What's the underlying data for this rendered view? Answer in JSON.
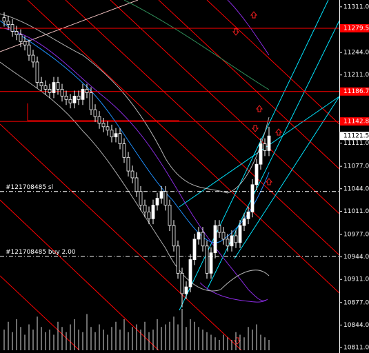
{
  "chart_data": {
    "type": "candlestick",
    "open": [
      11295,
      11290,
      11285,
      11275,
      11270,
      11260,
      11255,
      11240,
      11230,
      11200,
      11195,
      11190,
      11185,
      11200,
      11190,
      11180,
      11175,
      11170,
      11180,
      11175,
      11190,
      11185,
      11160,
      11150,
      11140,
      11135,
      11130,
      11120,
      11125,
      11110,
      11090,
      11070,
      11060,
      11040,
      11020,
      11010,
      11000,
      11020,
      11030,
      11040,
      11020,
      10990,
      10960,
      10920,
      10890,
      10900,
      10940,
      10970,
      10980,
      10960,
      10920,
      10950,
      10990,
      10980,
      10970,
      10960,
      10975,
      10965,
      10990,
      11000,
      11010,
      11050,
      11080,
      11110,
      11100
    ],
    "high": [
      11303,
      11298,
      11293,
      11283,
      11278,
      11268,
      11263,
      11248,
      11238,
      11208,
      11203,
      11198,
      11208,
      11208,
      11198,
      11188,
      11183,
      11188,
      11188,
      11198,
      11198,
      11193,
      11168,
      11158,
      11148,
      11143,
      11138,
      11133,
      11133,
      11118,
      11098,
      11078,
      11068,
      11048,
      11028,
      11018,
      11028,
      11038,
      11048,
      11048,
      11028,
      10998,
      10968,
      10928,
      10908,
      10948,
      10978,
      10988,
      10988,
      10968,
      10958,
      10998,
      10998,
      10988,
      10978,
      10983,
      10983,
      10998,
      11008,
      11018,
      11058,
      11088,
      11118,
      11118,
      11135
    ],
    "low": [
      11282,
      11277,
      11267,
      11262,
      11252,
      11247,
      11232,
      11222,
      11192,
      11187,
      11182,
      11177,
      11177,
      11182,
      11172,
      11167,
      11162,
      11162,
      11167,
      11167,
      11177,
      11152,
      11142,
      11132,
      11127,
      11122,
      11112,
      11112,
      11102,
      11082,
      11062,
      11052,
      11032,
      11012,
      11002,
      10992,
      10992,
      11012,
      11022,
      11012,
      10982,
      10952,
      10912,
      10870,
      10882,
      10892,
      10932,
      10962,
      10952,
      10912,
      10912,
      10942,
      10972,
      10962,
      10952,
      10952,
      10957,
      10957,
      10982,
      10992,
      11002,
      11042,
      11072,
      11092,
      11092
    ],
    "close": [
      11290,
      11285,
      11275,
      11270,
      11260,
      11255,
      11240,
      11230,
      11200,
      11195,
      11190,
      11185,
      11200,
      11190,
      11180,
      11175,
      11170,
      11180,
      11175,
      11190,
      11185,
      11160,
      11150,
      11140,
      11135,
      11130,
      11120,
      11125,
      11110,
      11090,
      11070,
      11060,
      11040,
      11020,
      11010,
      11000,
      11020,
      11030,
      11040,
      11020,
      10990,
      10960,
      10920,
      10890,
      10900,
      10940,
      10970,
      10980,
      10960,
      10920,
      10950,
      10990,
      10980,
      10970,
      10960,
      10975,
      10965,
      10990,
      11000,
      11010,
      11050,
      11080,
      11110,
      11100,
      11121.5
    ],
    "volume": [
      40,
      55,
      35,
      60,
      45,
      30,
      50,
      40,
      65,
      45,
      35,
      40,
      30,
      55,
      45,
      35,
      50,
      60,
      40,
      35,
      70,
      45,
      35,
      50,
      40,
      30,
      45,
      55,
      40,
      60,
      35,
      45,
      50,
      40,
      55,
      35,
      40,
      60,
      45,
      50,
      55,
      65,
      50,
      80,
      45,
      60,
      55,
      45,
      40,
      35,
      30,
      25,
      20,
      30,
      25,
      20,
      35,
      30,
      25,
      45,
      40,
      50,
      30,
      25,
      20
    ],
    "volume_ylim": [
      0,
      100
    ],
    "ylim": [
      10807,
      11321
    ],
    "yticks": [
      {
        "value": 11311,
        "label": "11311.0"
      },
      {
        "value": 11244,
        "label": "11244.0"
      },
      {
        "value": 11211,
        "label": "11211.0"
      },
      {
        "value": 11111,
        "label": "11111.0"
      },
      {
        "value": 11077,
        "label": "11077.0"
      },
      {
        "value": 11044,
        "label": "11044.0"
      },
      {
        "value": 11011,
        "label": "11011.0"
      },
      {
        "value": 10977,
        "label": "10977.0"
      },
      {
        "value": 10944,
        "label": "10944.0"
      },
      {
        "value": 10911,
        "label": "10911.0"
      },
      {
        "value": 10877,
        "label": "10877.0"
      },
      {
        "value": 10844,
        "label": "10844.0"
      },
      {
        "value": 10811,
        "label": "10811.0"
      }
    ],
    "price_lines": [
      11279.5,
      11186.7,
      11142.8
    ],
    "current_price": 11121.5,
    "orders": [
      {
        "label": "#121708485 sl",
        "price": 11040
      },
      {
        "label": "#121708485 buy 2.00",
        "price": 10945
      }
    ],
    "up_color": "#ffffff",
    "down_color": "#000000",
    "line_color": "#ff0000"
  }
}
